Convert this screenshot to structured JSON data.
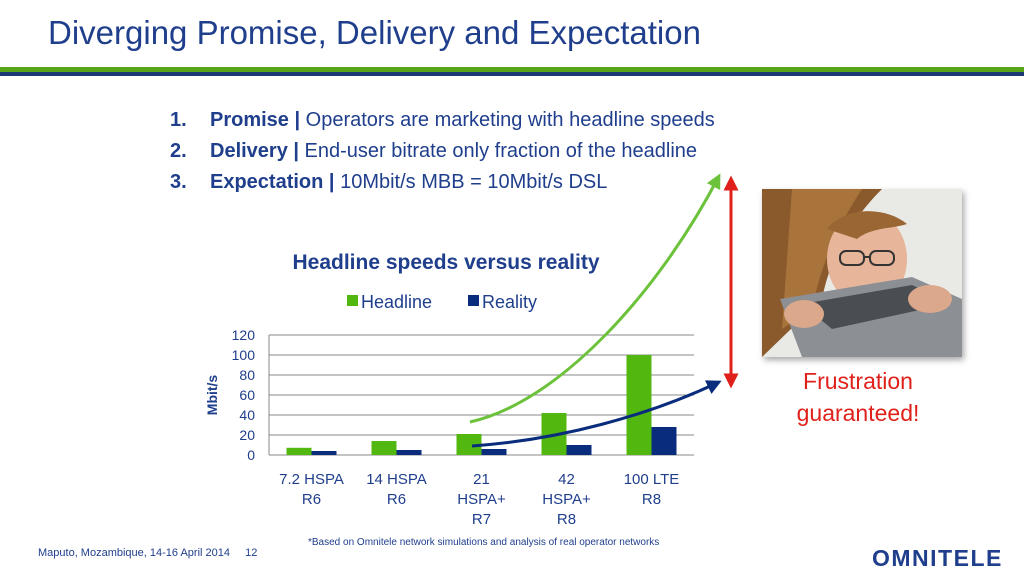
{
  "slide": {
    "title": "Diverging Promise, Delivery and Expectation",
    "colors": {
      "title": "#1f3e8c",
      "rule_green": "#58a618",
      "rule_blue": "#1c3872",
      "accent_red": "#e0201a"
    }
  },
  "bullets": [
    {
      "num": "1.",
      "term": "Promise |",
      "text": " Operators are marketing with headline speeds"
    },
    {
      "num": "2.",
      "term": "Delivery |",
      "text": " End-user bitrate only fraction of the headline"
    },
    {
      "num": "3.",
      "term": "Expectation |",
      "text": " 10Mbit/s MBB = 10Mbit/s DSL"
    }
  ],
  "chart_data": {
    "type": "bar",
    "title": "Headline speeds versus reality",
    "ylabel": "Mbit/s",
    "xlabel": "",
    "ylim": [
      0,
      120
    ],
    "yticks": [
      0,
      20,
      40,
      60,
      80,
      100,
      120
    ],
    "grid": true,
    "legend_position": "top",
    "categories": [
      [
        "7.2 HSPA",
        "R6"
      ],
      [
        "14 HSPA",
        "R6"
      ],
      [
        "21",
        "HSPA+",
        "R7"
      ],
      [
        "42",
        "HSPA+",
        "R8"
      ],
      [
        "100 LTE",
        "R8"
      ]
    ],
    "series": [
      {
        "name": "Headline",
        "color": "#52b80f",
        "values": [
          7.2,
          14,
          21,
          42,
          100
        ]
      },
      {
        "name": "Reality",
        "color": "#0a2c7c",
        "values": [
          4,
          5,
          6,
          10,
          28
        ]
      }
    ]
  },
  "callout": {
    "text_line1": "Frustration",
    "text_line2": "guaranteed!",
    "photo": "frustrated-person-biting-laptop"
  },
  "footer": {
    "event": "Maputo, Mozambique, 14-16 April 2014",
    "page": "12",
    "footnote": "*Based on Omnitele network simulations and analysis of real operator networks",
    "logo": "OMNITELE"
  }
}
